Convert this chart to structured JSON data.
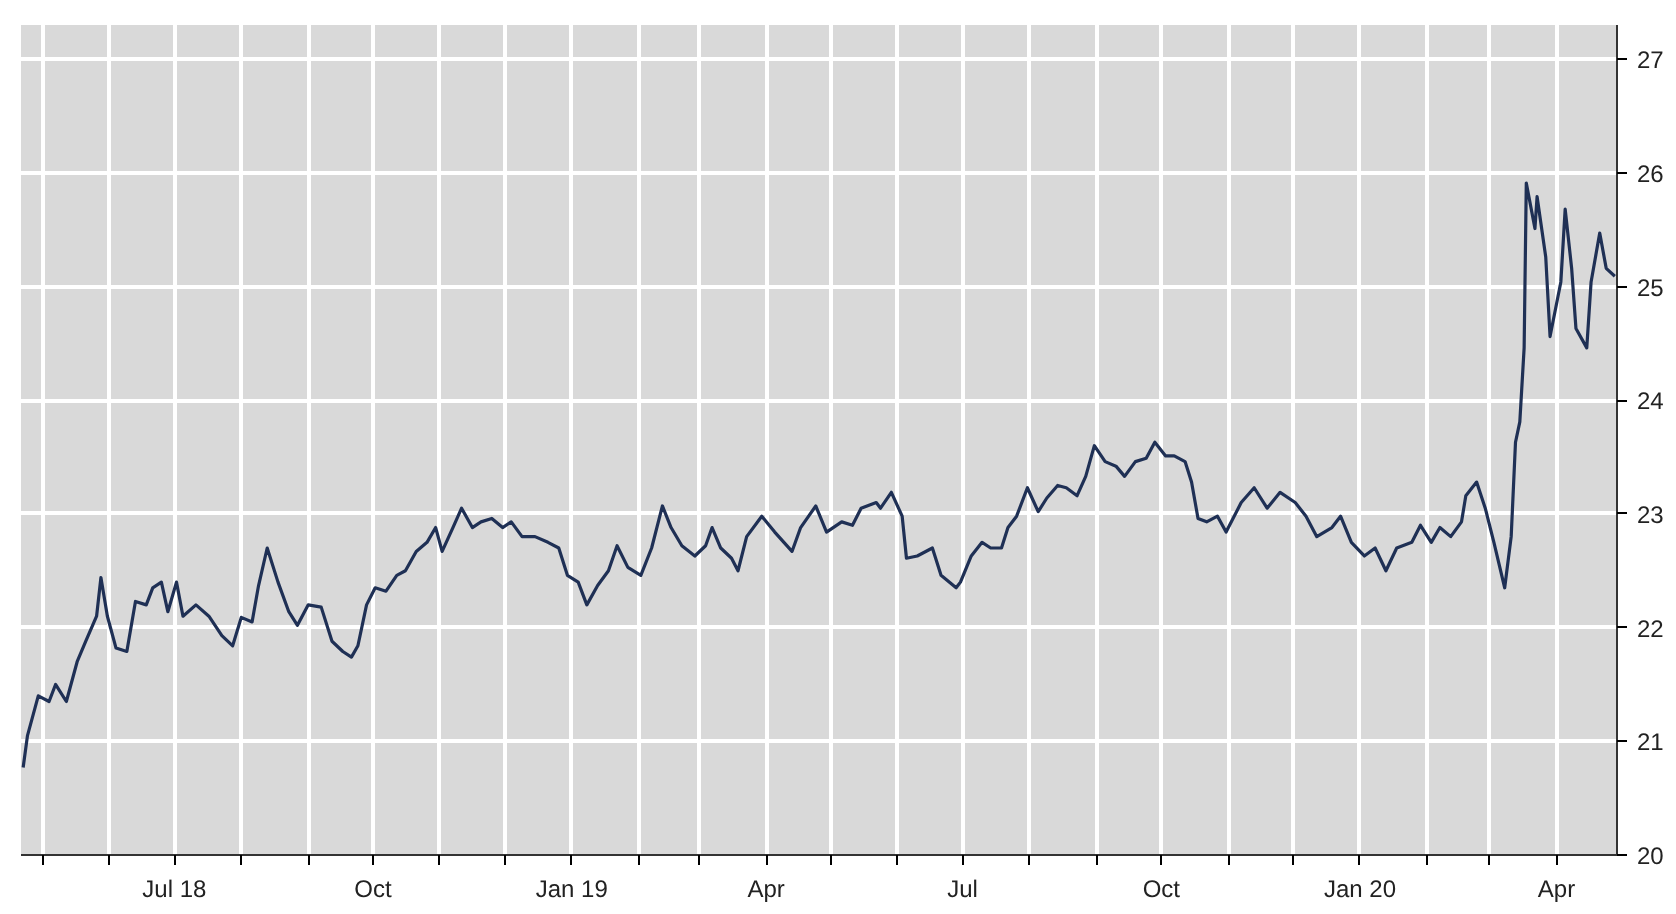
{
  "chart_data": {
    "type": "line",
    "x": [
      "2018-04-22",
      "2018-04-24",
      "2018-04-29",
      "2018-05-04",
      "2018-05-07",
      "2018-05-12",
      "2018-05-17",
      "2018-05-21",
      "2018-05-26",
      "2018-05-28",
      "2018-05-31",
      "2018-06-04",
      "2018-06-09",
      "2018-06-13",
      "2018-06-18",
      "2018-06-21",
      "2018-06-25",
      "2018-06-28",
      "2018-07-02",
      "2018-07-05",
      "2018-07-11",
      "2018-07-17",
      "2018-07-23",
      "2018-07-28",
      "2018-08-01",
      "2018-08-06",
      "2018-08-09",
      "2018-08-13",
      "2018-08-18",
      "2018-08-23",
      "2018-08-27",
      "2018-09-01",
      "2018-09-07",
      "2018-09-12",
      "2018-09-17",
      "2018-09-21",
      "2018-09-24",
      "2018-09-28",
      "2018-10-02",
      "2018-10-07",
      "2018-10-12",
      "2018-10-16",
      "2018-10-21",
      "2018-10-26",
      "2018-10-30",
      "2018-11-02",
      "2018-11-07",
      "2018-11-11",
      "2018-11-16",
      "2018-11-20",
      "2018-11-25",
      "2018-11-30",
      "2018-12-04",
      "2018-12-09",
      "2018-12-15",
      "2018-12-21",
      "2018-12-26",
      "2018-12-30",
      "2019-01-04",
      "2019-01-08",
      "2019-01-13",
      "2019-01-18",
      "2019-01-22",
      "2019-01-27",
      "2019-02-02",
      "2019-02-07",
      "2019-02-12",
      "2019-02-16",
      "2019-02-21",
      "2019-02-27",
      "2019-03-04",
      "2019-03-07",
      "2019-03-11",
      "2019-03-16",
      "2019-03-19",
      "2019-03-23",
      "2019-03-30",
      "2019-04-05",
      "2019-04-13",
      "2019-04-17",
      "2019-04-24",
      "2019-04-29",
      "2019-05-06",
      "2019-05-11",
      "2019-05-15",
      "2019-05-22",
      "2019-05-24",
      "2019-05-29",
      "2019-06-03",
      "2019-06-05",
      "2019-06-10",
      "2019-06-17",
      "2019-06-21",
      "2019-06-28",
      "2019-06-30",
      "2019-07-05",
      "2019-07-10",
      "2019-07-14",
      "2019-07-19",
      "2019-07-22",
      "2019-07-26",
      "2019-07-31",
      "2019-08-05",
      "2019-08-09",
      "2019-08-14",
      "2019-08-18",
      "2019-08-23",
      "2019-08-27",
      "2019-08-31",
      "2019-09-05",
      "2019-09-10",
      "2019-09-14",
      "2019-09-19",
      "2019-09-24",
      "2019-09-28",
      "2019-10-03",
      "2019-10-07",
      "2019-10-12",
      "2019-10-15",
      "2019-10-18",
      "2019-10-22",
      "2019-10-27",
      "2019-10-31",
      "2019-11-07",
      "2019-11-13",
      "2019-11-19",
      "2019-11-25",
      "2019-12-02",
      "2019-12-07",
      "2019-12-12",
      "2019-12-19",
      "2019-12-23",
      "2019-12-28",
      "2020-01-03",
      "2020-01-08",
      "2020-01-13",
      "2020-01-18",
      "2020-01-25",
      "2020-01-29",
      "2020-02-03",
      "2020-02-07",
      "2020-02-12",
      "2020-02-17",
      "2020-02-19",
      "2020-02-24",
      "2020-02-28",
      "2020-03-03",
      "2020-03-08",
      "2020-03-11",
      "2020-03-13",
      "2020-03-15",
      "2020-03-17",
      "2020-03-18",
      "2020-03-22",
      "2020-03-23",
      "2020-03-27",
      "2020-03-29",
      "2020-04-03",
      "2020-04-05",
      "2020-04-08",
      "2020-04-10",
      "2020-04-15",
      "2020-04-17",
      "2020-04-21",
      "2020-04-24",
      "2020-04-28"
    ],
    "series": [
      {
        "color": "#1f3055",
        "values": [
          20.77,
          21.05,
          21.4,
          21.35,
          21.5,
          21.35,
          21.7,
          21.88,
          22.1,
          22.44,
          22.1,
          21.82,
          21.79,
          22.23,
          22.2,
          22.35,
          22.4,
          22.14,
          22.4,
          22.1,
          22.2,
          22.1,
          21.93,
          21.84,
          22.09,
          22.05,
          22.37,
          22.7,
          22.4,
          22.14,
          22.02,
          22.2,
          22.18,
          21.88,
          21.79,
          21.74,
          21.84,
          22.2,
          22.35,
          22.32,
          22.46,
          22.5,
          22.67,
          22.75,
          22.88,
          22.67,
          22.88,
          23.05,
          22.88,
          22.93,
          22.96,
          22.88,
          22.93,
          22.8,
          22.8,
          22.75,
          22.7,
          22.46,
          22.4,
          22.2,
          22.37,
          22.5,
          22.72,
          22.53,
          22.46,
          22.7,
          23.07,
          22.88,
          22.72,
          22.63,
          22.72,
          22.88,
          22.7,
          22.61,
          22.5,
          22.8,
          22.98,
          22.84,
          22.67,
          22.88,
          23.07,
          22.84,
          22.93,
          22.9,
          23.05,
          23.1,
          23.05,
          23.19,
          22.98,
          22.61,
          22.63,
          22.7,
          22.46,
          22.35,
          22.4,
          22.63,
          22.75,
          22.7,
          22.7,
          22.88,
          22.98,
          23.23,
          23.02,
          23.14,
          23.25,
          23.23,
          23.16,
          23.33,
          23.6,
          23.46,
          23.42,
          23.33,
          23.46,
          23.49,
          23.63,
          23.51,
          23.51,
          23.46,
          23.28,
          22.96,
          22.93,
          22.98,
          22.84,
          23.1,
          23.23,
          23.05,
          23.19,
          23.1,
          22.98,
          22.8,
          22.88,
          22.98,
          22.75,
          22.63,
          22.7,
          22.5,
          22.7,
          22.75,
          22.9,
          22.75,
          22.88,
          22.8,
          22.93,
          23.16,
          23.28,
          23.05,
          22.75,
          22.35,
          22.8,
          23.63,
          23.81,
          24.46,
          25.91,
          25.51,
          25.79,
          25.26,
          24.56,
          25.04,
          25.68,
          25.16,
          24.63,
          24.46,
          25.04,
          25.47,
          25.16,
          25.09
        ]
      }
    ],
    "xlim": [
      "2018-04-21",
      "2020-04-29"
    ],
    "xticks": [
      {
        "value": "2018-05-01",
        "label": null
      },
      {
        "value": "2018-06-01",
        "label": null
      },
      {
        "value": "2018-07-01",
        "label": "Jul 18"
      },
      {
        "value": "2018-08-01",
        "label": null
      },
      {
        "value": "2018-09-01",
        "label": null
      },
      {
        "value": "2018-10-01",
        "label": "Oct"
      },
      {
        "value": "2018-11-01",
        "label": null
      },
      {
        "value": "2018-12-01",
        "label": null
      },
      {
        "value": "2019-01-01",
        "label": "Jan 19"
      },
      {
        "value": "2019-02-01",
        "label": null
      },
      {
        "value": "2019-03-01",
        "label": null
      },
      {
        "value": "2019-04-01",
        "label": "Apr"
      },
      {
        "value": "2019-05-01",
        "label": null
      },
      {
        "value": "2019-06-01",
        "label": null
      },
      {
        "value": "2019-07-01",
        "label": "Jul"
      },
      {
        "value": "2019-08-01",
        "label": null
      },
      {
        "value": "2019-09-01",
        "label": null
      },
      {
        "value": "2019-10-01",
        "label": "Oct"
      },
      {
        "value": "2019-11-01",
        "label": null
      },
      {
        "value": "2019-12-01",
        "label": null
      },
      {
        "value": "2020-01-01",
        "label": "Jan 20"
      },
      {
        "value": "2020-02-01",
        "label": null
      },
      {
        "value": "2020-03-01",
        "label": null
      },
      {
        "value": "2020-04-01",
        "label": "Apr"
      }
    ],
    "ylim": [
      20,
      27.3
    ],
    "yticks": [
      20,
      21,
      22,
      23,
      24,
      25,
      26,
      27
    ],
    "grid": true,
    "line_style": "solid",
    "marker": "none"
  }
}
